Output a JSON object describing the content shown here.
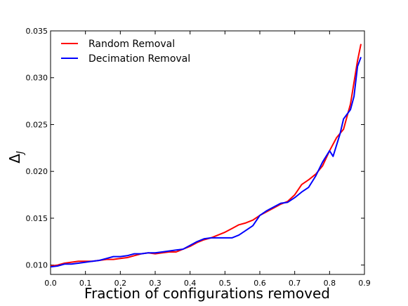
{
  "chart_data": {
    "type": "line",
    "xlabel": "Fraction of configurations removed",
    "ylabel": "Δ_J",
    "xlim": [
      0.0,
      0.9
    ],
    "ylim": [
      0.009,
      0.035
    ],
    "x_ticks": [
      "0.0",
      "0.1",
      "0.2",
      "0.3",
      "0.4",
      "0.5",
      "0.6",
      "0.7",
      "0.8",
      "0.9"
    ],
    "y_ticks": [
      "0.010",
      "0.015",
      "0.020",
      "0.025",
      "0.030",
      "0.035"
    ],
    "x_tick_values": [
      0.0,
      0.1,
      0.2,
      0.3,
      0.4,
      0.5,
      0.6,
      0.7,
      0.8,
      0.9
    ],
    "y_tick_values": [
      0.01,
      0.015,
      0.02,
      0.025,
      0.03,
      0.035
    ],
    "grid": false,
    "legend_position": "top-left",
    "series": [
      {
        "name": "Random Removal",
        "color": "#ff0000",
        "points": [
          [
            0.0,
            0.0099
          ],
          [
            0.02,
            0.01
          ],
          [
            0.04,
            0.0102
          ],
          [
            0.06,
            0.0103
          ],
          [
            0.08,
            0.0104
          ],
          [
            0.1,
            0.0104
          ],
          [
            0.12,
            0.0104
          ],
          [
            0.14,
            0.0105
          ],
          [
            0.16,
            0.0106
          ],
          [
            0.18,
            0.0106
          ],
          [
            0.2,
            0.0107
          ],
          [
            0.22,
            0.0108
          ],
          [
            0.24,
            0.011
          ],
          [
            0.26,
            0.0112
          ],
          [
            0.28,
            0.0113
          ],
          [
            0.3,
            0.0112
          ],
          [
            0.32,
            0.0113
          ],
          [
            0.34,
            0.0114
          ],
          [
            0.36,
            0.0114
          ],
          [
            0.38,
            0.0117
          ],
          [
            0.4,
            0.012
          ],
          [
            0.42,
            0.0124
          ],
          [
            0.44,
            0.0127
          ],
          [
            0.46,
            0.0129
          ],
          [
            0.48,
            0.0132
          ],
          [
            0.5,
            0.0135
          ],
          [
            0.52,
            0.0139
          ],
          [
            0.54,
            0.0143
          ],
          [
            0.56,
            0.0145
          ],
          [
            0.58,
            0.0148
          ],
          [
            0.6,
            0.0153
          ],
          [
            0.62,
            0.0157
          ],
          [
            0.64,
            0.0161
          ],
          [
            0.66,
            0.0165
          ],
          [
            0.68,
            0.0168
          ],
          [
            0.7,
            0.0175
          ],
          [
            0.72,
            0.0186
          ],
          [
            0.74,
            0.0191
          ],
          [
            0.76,
            0.0197
          ],
          [
            0.78,
            0.0206
          ],
          [
            0.8,
            0.0222
          ],
          [
            0.82,
            0.0236
          ],
          [
            0.84,
            0.0245
          ],
          [
            0.86,
            0.0272
          ],
          [
            0.88,
            0.0318
          ],
          [
            0.89,
            0.0336
          ]
        ]
      },
      {
        "name": "Decimation Removal",
        "color": "#0000ff",
        "points": [
          [
            0.0,
            0.0098
          ],
          [
            0.02,
            0.0099
          ],
          [
            0.04,
            0.0101
          ],
          [
            0.06,
            0.0101
          ],
          [
            0.08,
            0.0102
          ],
          [
            0.1,
            0.0103
          ],
          [
            0.12,
            0.0104
          ],
          [
            0.14,
            0.0105
          ],
          [
            0.16,
            0.0107
          ],
          [
            0.18,
            0.0109
          ],
          [
            0.2,
            0.0109
          ],
          [
            0.22,
            0.011
          ],
          [
            0.24,
            0.0112
          ],
          [
            0.26,
            0.0112
          ],
          [
            0.28,
            0.0113
          ],
          [
            0.3,
            0.0113
          ],
          [
            0.32,
            0.0114
          ],
          [
            0.34,
            0.0115
          ],
          [
            0.36,
            0.0116
          ],
          [
            0.38,
            0.0117
          ],
          [
            0.4,
            0.0121
          ],
          [
            0.42,
            0.0125
          ],
          [
            0.44,
            0.0128
          ],
          [
            0.46,
            0.0129
          ],
          [
            0.48,
            0.0129
          ],
          [
            0.5,
            0.0129
          ],
          [
            0.52,
            0.0129
          ],
          [
            0.54,
            0.0132
          ],
          [
            0.56,
            0.0137
          ],
          [
            0.58,
            0.0142
          ],
          [
            0.6,
            0.0153
          ],
          [
            0.62,
            0.0158
          ],
          [
            0.64,
            0.0162
          ],
          [
            0.66,
            0.0166
          ],
          [
            0.68,
            0.0167
          ],
          [
            0.7,
            0.0172
          ],
          [
            0.72,
            0.0178
          ],
          [
            0.74,
            0.0183
          ],
          [
            0.76,
            0.0195
          ],
          [
            0.78,
            0.021
          ],
          [
            0.8,
            0.0222
          ],
          [
            0.81,
            0.0216
          ],
          [
            0.83,
            0.024
          ],
          [
            0.84,
            0.0256
          ],
          [
            0.86,
            0.0266
          ],
          [
            0.87,
            0.028
          ],
          [
            0.88,
            0.0312
          ],
          [
            0.89,
            0.0322
          ]
        ]
      }
    ]
  }
}
